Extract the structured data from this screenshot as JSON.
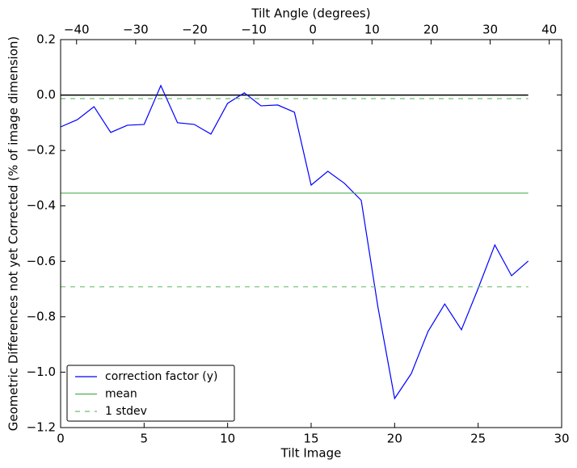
{
  "chart_data": {
    "type": "line",
    "xlabel": "Tilt Image",
    "ylabel": "Geometric Differences not yet Corrected (% of image dimension)",
    "x2label": "Tilt Angle (degrees)",
    "x": [
      0,
      1,
      2,
      3,
      4,
      5,
      6,
      7,
      8,
      9,
      10,
      11,
      12,
      13,
      14,
      15,
      16,
      17,
      18,
      19,
      20,
      21,
      22,
      23,
      24,
      25,
      26,
      27,
      28
    ],
    "series": [
      {
        "name": "correction factor (y)",
        "color": "#0000ff",
        "values": [
          -0.115,
          -0.089,
          -0.042,
          -0.135,
          -0.109,
          -0.106,
          0.034,
          -0.1,
          -0.106,
          -0.141,
          -0.03,
          0.008,
          -0.039,
          -0.036,
          -0.062,
          -0.325,
          -0.275,
          -0.319,
          -0.38,
          -0.765,
          -1.095,
          -1.005,
          -0.853,
          -0.754,
          -0.847,
          -0.698,
          -0.541,
          -0.652,
          -0.599
        ]
      },
      {
        "name": "mean",
        "color": "#4caf50",
        "hline": [
          -0.354
        ],
        "dash": false
      },
      {
        "name": "1 stdev",
        "color": "#6cc06c",
        "hline": [
          -0.013,
          -0.692
        ],
        "dash": true
      }
    ],
    "reference_line": {
      "value": 0,
      "color": "#000000"
    },
    "xlim": [
      0,
      30
    ],
    "xticks": [
      0,
      5,
      10,
      15,
      20,
      25,
      30
    ],
    "x2lim": [
      -42.7,
      42.1
    ],
    "x2ticks": [
      {
        "value": -40,
        "label": "−40"
      },
      {
        "value": -30,
        "label": "−30"
      },
      {
        "value": -20,
        "label": "−20"
      },
      {
        "value": -10,
        "label": "−10"
      },
      0,
      10,
      20,
      30,
      40
    ],
    "ylim": [
      -1.2,
      0.2
    ],
    "yticks": [
      {
        "value": -1.2,
        "label": "−1.2"
      },
      {
        "value": -1.0,
        "label": "−1.0"
      },
      {
        "value": -0.8,
        "label": "−0.8"
      },
      {
        "value": -0.6,
        "label": "−0.6"
      },
      {
        "value": -0.4,
        "label": "−0.4"
      },
      {
        "value": -0.2,
        "label": "−0.2"
      },
      {
        "value": 0.0,
        "label": "0.0"
      },
      0.2
    ],
    "legend": "lower left"
  }
}
